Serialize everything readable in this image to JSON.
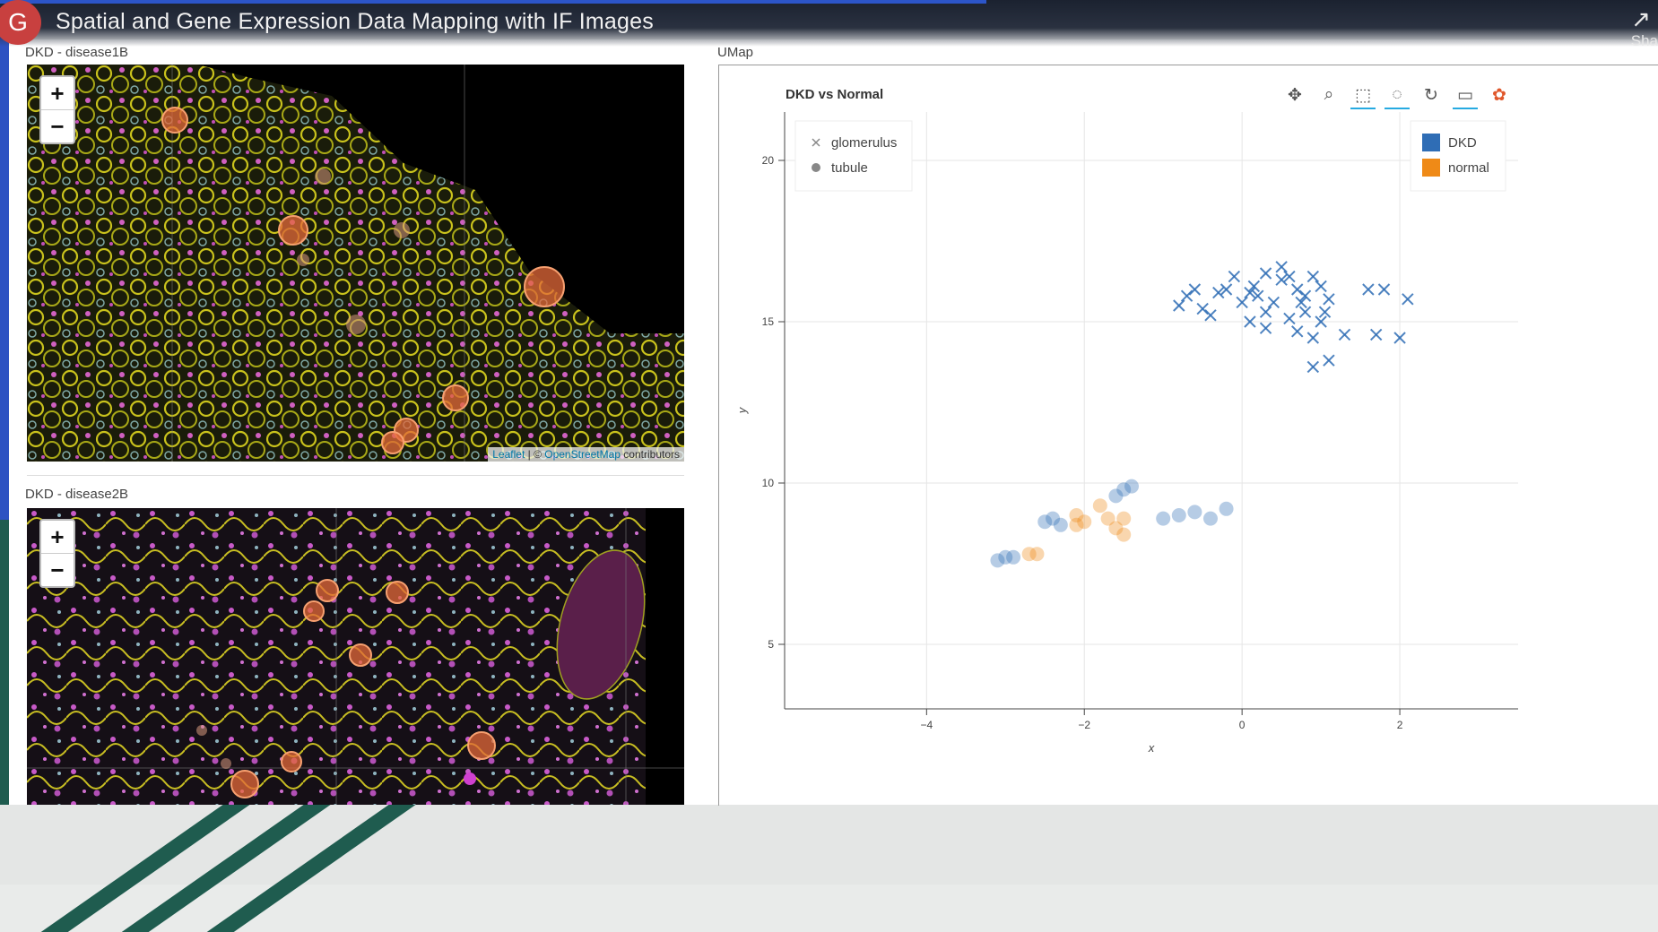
{
  "video": {
    "avatar_letter": "G",
    "title": "Spatial and Gene Expression Data Mapping with IF Images",
    "share_label": "Sha"
  },
  "maps": [
    {
      "label": "DKD - disease1B",
      "zoom_in": "+",
      "zoom_out": "−"
    },
    {
      "label": "DKD - disease2B",
      "zoom_in": "+",
      "zoom_out": "−"
    }
  ],
  "attribution": {
    "leaflet": "Leaflet",
    "sep": " | © ",
    "osm": "OpenStreetMap",
    "suffix": " contributors"
  },
  "umap": {
    "section_label": "UMap",
    "toolbar": [
      {
        "name": "pan-icon",
        "glyph": "✥"
      },
      {
        "name": "wheel-zoom-icon",
        "glyph": "⌕"
      },
      {
        "name": "box-zoom-icon",
        "glyph": "⬚"
      },
      {
        "name": "lasso-icon",
        "glyph": "◌"
      },
      {
        "name": "reset-icon",
        "glyph": "↻"
      },
      {
        "name": "hover-icon",
        "glyph": "▭"
      },
      {
        "name": "bokeh-logo-icon",
        "glyph": "✿"
      }
    ]
  },
  "colors": {
    "dkd": "#2f6db5",
    "normal": "#ef8a17"
  },
  "chart_data": {
    "type": "scatter",
    "title": "DKD vs Normal",
    "xlabel": "x",
    "ylabel": "y",
    "xlim": [
      -5.8,
      3.5
    ],
    "ylim": [
      3.0,
      21.5
    ],
    "xticks": [
      -4,
      -2,
      0,
      2
    ],
    "yticks": [
      5,
      10,
      15,
      20
    ],
    "xtick_labels": [
      "−4",
      "−2",
      "0",
      "2"
    ],
    "ytick_labels": [
      "5",
      "10",
      "15",
      "20"
    ],
    "grid": true,
    "shape_legend": {
      "placement": "top-left",
      "entries": [
        {
          "label": "glomerulus",
          "marker": "x"
        },
        {
          "label": "tubule",
          "marker": "circle"
        }
      ]
    },
    "color_legend": {
      "placement": "top-right",
      "entries": [
        {
          "label": "DKD",
          "color": "#2f6db5"
        },
        {
          "label": "normal",
          "color": "#ef8a17"
        }
      ]
    },
    "series": [
      {
        "name": "DKD",
        "marker": "x",
        "color": "#2f6db5",
        "points": [
          [
            -0.7,
            15.8
          ],
          [
            -0.6,
            16.0
          ],
          [
            -0.5,
            15.4
          ],
          [
            -0.4,
            15.2
          ],
          [
            -0.3,
            15.9
          ],
          [
            -0.2,
            16.0
          ],
          [
            -0.1,
            16.4
          ],
          [
            0.0,
            15.6
          ],
          [
            0.1,
            15.9
          ],
          [
            0.1,
            15.0
          ],
          [
            0.2,
            15.8
          ],
          [
            0.3,
            16.5
          ],
          [
            0.3,
            15.3
          ],
          [
            0.4,
            15.6
          ],
          [
            0.5,
            16.7
          ],
          [
            0.5,
            16.3
          ],
          [
            0.6,
            16.4
          ],
          [
            0.6,
            15.1
          ],
          [
            0.7,
            16.0
          ],
          [
            0.7,
            14.7
          ],
          [
            0.8,
            15.8
          ],
          [
            0.8,
            15.3
          ],
          [
            0.9,
            16.4
          ],
          [
            0.9,
            14.5
          ],
          [
            1.0,
            16.1
          ],
          [
            1.0,
            15.0
          ],
          [
            1.1,
            15.7
          ],
          [
            1.1,
            13.8
          ],
          [
            0.9,
            13.6
          ],
          [
            1.3,
            14.6
          ],
          [
            1.6,
            16.0
          ],
          [
            1.8,
            16.0
          ],
          [
            1.7,
            14.6
          ],
          [
            2.0,
            14.5
          ],
          [
            2.1,
            15.7
          ],
          [
            0.3,
            14.8
          ],
          [
            -0.8,
            15.5
          ],
          [
            0.15,
            16.1
          ],
          [
            0.75,
            15.6
          ],
          [
            1.05,
            15.3
          ]
        ]
      },
      {
        "name": "DKD",
        "marker": "circle",
        "color": "#2f6db5",
        "points": [
          [
            -3.1,
            7.6
          ],
          [
            -3.0,
            7.7
          ],
          [
            -2.9,
            7.7
          ],
          [
            -2.5,
            8.8
          ],
          [
            -2.4,
            8.9
          ],
          [
            -2.3,
            8.7
          ],
          [
            -1.6,
            9.6
          ],
          [
            -1.5,
            9.8
          ],
          [
            -1.4,
            9.9
          ],
          [
            -1.0,
            8.9
          ],
          [
            -0.8,
            9.0
          ],
          [
            -0.6,
            9.1
          ],
          [
            -0.4,
            8.9
          ],
          [
            -0.2,
            9.2
          ]
        ]
      },
      {
        "name": "normal",
        "marker": "circle",
        "color": "#ef8a17",
        "points": [
          [
            -2.7,
            7.8
          ],
          [
            -2.6,
            7.8
          ],
          [
            -2.1,
            9.0
          ],
          [
            -2.0,
            8.8
          ],
          [
            -1.8,
            9.3
          ],
          [
            -1.7,
            8.9
          ],
          [
            -1.6,
            8.6
          ],
          [
            -1.5,
            8.9
          ],
          [
            -1.5,
            8.4
          ],
          [
            -2.1,
            8.7
          ]
        ]
      }
    ]
  }
}
